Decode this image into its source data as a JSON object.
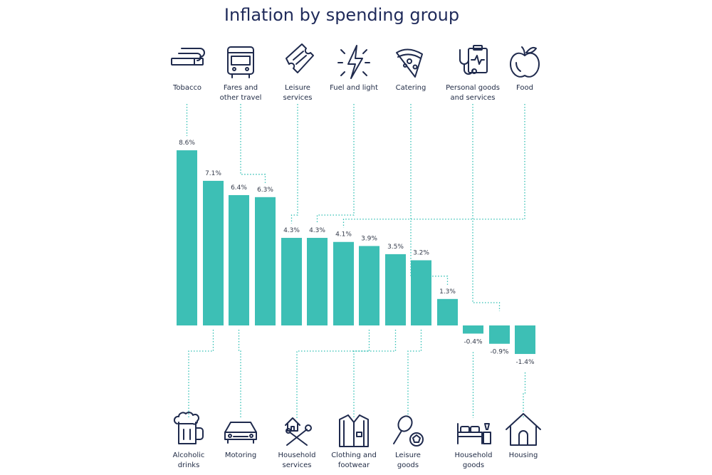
{
  "chart_data": {
    "type": "bar",
    "title": "Inflation by spending group",
    "unit": "%",
    "bar_color": "#3dbfb5",
    "icon_color": "#1f2a4d",
    "bars": [
      {
        "value": 8.6,
        "label": "8.6%",
        "category": [
          "Tobacco"
        ],
        "icon": "cigarette-icon"
      },
      {
        "value": 7.1,
        "label": "7.1%",
        "category": [
          "Alcoholic",
          "drinks"
        ],
        "icon": "beer-mug-icon"
      },
      {
        "value": 6.4,
        "label": "6.4%",
        "category": [
          "Motoring"
        ],
        "icon": "car-icon"
      },
      {
        "value": 6.3,
        "label": "6.3%",
        "category": [
          "Fares and",
          "other travel"
        ],
        "icon": "bus-icon"
      },
      {
        "value": 4.3,
        "label": "4.3%",
        "category": [
          "Leisure",
          "services"
        ],
        "icon": "ticket-icon"
      },
      {
        "value": 4.3,
        "label": "4.3%",
        "category": [
          "Fuel and light"
        ],
        "icon": "lightning-icon"
      },
      {
        "value": 4.1,
        "label": "4.1%",
        "category": [
          "Food"
        ],
        "icon": "apple-icon"
      },
      {
        "value": 3.9,
        "label": "3.9%",
        "category": [
          "Household",
          "services"
        ],
        "icon": "house-tools-icon"
      },
      {
        "value": 3.5,
        "label": "3.5%",
        "category": [
          "Clothing and",
          "footwear"
        ],
        "icon": "shirt-icon"
      },
      {
        "value": 3.2,
        "label": "3.2%",
        "category": [
          "Leisure",
          "goods"
        ],
        "icon": "sports-ball-icon"
      },
      {
        "value": 1.3,
        "label": "1.3%",
        "category": [
          "Catering"
        ],
        "icon": "pizza-icon"
      },
      {
        "value": -0.4,
        "label": "-0.4%",
        "category": [
          "Household",
          "goods"
        ],
        "icon": "bed-icon"
      },
      {
        "value": -0.9,
        "label": "-0.9%",
        "category": [
          "Personal goods",
          "and services"
        ],
        "icon": "clipboard-stethoscope-icon"
      },
      {
        "value": -1.4,
        "label": "-1.4%",
        "category": [
          "Housing"
        ],
        "icon": "house-icon"
      }
    ]
  }
}
